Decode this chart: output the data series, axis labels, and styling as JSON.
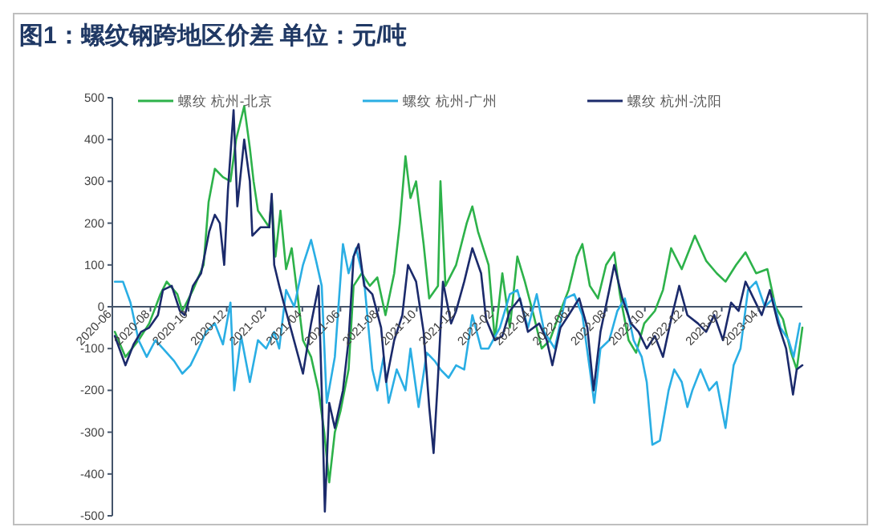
{
  "chart_data": {
    "type": "line",
    "title": "图1：螺纹钢跨地区价差   单位：元/吨",
    "xlim": [
      "2020-06-01",
      "2023-06-10"
    ],
    "ylim": [
      -500,
      500
    ],
    "yticks": [
      -500,
      -400,
      -300,
      -200,
      -100,
      0,
      100,
      200,
      300,
      400,
      500
    ],
    "xticks": [
      {
        "value": "2020-06",
        "label": "2020-06"
      },
      {
        "value": "2020-08",
        "label": "2020-08"
      },
      {
        "value": "2020-10",
        "label": "2020-10"
      },
      {
        "value": "2020-12",
        "label": "2020-12"
      },
      {
        "value": "2021-02",
        "label": "2021-02"
      },
      {
        "value": "2021-04",
        "label": "2021-04"
      },
      {
        "value": "2021-06",
        "label": "2021-06"
      },
      {
        "value": "2021-08",
        "label": "2021-08"
      },
      {
        "value": "2021-10",
        "label": "2021-10"
      },
      {
        "value": "2021-12",
        "label": "2021-12"
      },
      {
        "value": "2022-02",
        "label": "2022-02"
      },
      {
        "value": "2022-04",
        "label": "2022-04"
      },
      {
        "value": "2022-06",
        "label": "2022-06"
      },
      {
        "value": "2022-08",
        "label": "2022-08"
      },
      {
        "value": "2022-10",
        "label": "2022-10"
      },
      {
        "value": "2022-12",
        "label": "2022-12"
      },
      {
        "value": "2023-02",
        "label": "2023-02"
      },
      {
        "value": "2023-04",
        "label": "2023-04"
      }
    ],
    "grid": false,
    "legend": "top",
    "series": [
      {
        "name": "螺纹 杭州-北京",
        "color": "#2db24a",
        "x": [
          "2020-06-05",
          "2020-06-22",
          "2020-07-13",
          "2020-07-30",
          "2020-08-17",
          "2020-08-27",
          "2020-09-13",
          "2020-09-21",
          "2020-10-08",
          "2020-10-25",
          "2020-11-02",
          "2020-11-12",
          "2020-11-25",
          "2020-12-07",
          "2020-12-16",
          "2020-12-29",
          "2021-01-07",
          "2021-01-13",
          "2021-01-20",
          "2021-02-07",
          "2021-02-11",
          "2021-02-17",
          "2021-02-25",
          "2021-03-06",
          "2021-03-15",
          "2021-03-24",
          "2021-04-02",
          "2021-04-15",
          "2021-04-27",
          "2021-05-06",
          "2021-05-14",
          "2021-05-23",
          "2021-06-01",
          "2021-06-14",
          "2021-06-22",
          "2021-07-05",
          "2021-07-18",
          "2021-07-30",
          "2021-08-12",
          "2021-08-26",
          "2021-09-04",
          "2021-09-13",
          "2021-09-21",
          "2021-09-30",
          "2021-10-12",
          "2021-10-21",
          "2021-11-04",
          "2021-11-08",
          "2021-11-16",
          "2021-12-03",
          "2021-12-20",
          "2021-12-29",
          "2022-01-07",
          "2022-01-24",
          "2022-02-03",
          "2022-02-15",
          "2022-02-27",
          "2022-03-11",
          "2022-03-23",
          "2022-04-06",
          "2022-04-19",
          "2022-05-02",
          "2022-05-19",
          "2022-06-01",
          "2022-06-14",
          "2022-06-23",
          "2022-07-05",
          "2022-07-18",
          "2022-07-31",
          "2022-08-13",
          "2022-08-22",
          "2022-09-05",
          "2022-09-17",
          "2022-09-30",
          "2022-10-17",
          "2022-10-30",
          "2022-11-12",
          "2022-11-29",
          "2022-12-20",
          "2023-01-07",
          "2023-01-24",
          "2023-02-07",
          "2023-02-24",
          "2023-03-11",
          "2023-03-28",
          "2023-04-15",
          "2023-04-28",
          "2023-05-10",
          "2023-05-23",
          "2023-06-01",
          "2023-06-10"
        ],
        "values": [
          -60,
          -120,
          -80,
          -40,
          30,
          60,
          30,
          -10,
          40,
          100,
          250,
          330,
          310,
          300,
          400,
          480,
          380,
          300,
          230,
          190,
          260,
          120,
          230,
          90,
          140,
          30,
          -80,
          -120,
          -200,
          -300,
          -420,
          -300,
          -250,
          -150,
          50,
          80,
          50,
          70,
          -20,
          80,
          200,
          360,
          260,
          300,
          150,
          20,
          50,
          300,
          50,
          100,
          200,
          240,
          180,
          100,
          -80,
          80,
          -50,
          120,
          60,
          -20,
          -100,
          -80,
          -10,
          40,
          120,
          150,
          50,
          20,
          100,
          130,
          30,
          -80,
          -110,
          -40,
          -10,
          40,
          140,
          90,
          170,
          110,
          80,
          60,
          100,
          130,
          80,
          90,
          0,
          -30,
          -110,
          -150,
          -50
        ]
      },
      {
        "name": "螺纹 杭州-广州",
        "color": "#2aaee4",
        "x": [
          "2020-06-05",
          "2020-06-18",
          "2020-06-30",
          "2020-07-13",
          "2020-07-26",
          "2020-08-09",
          "2020-08-21",
          "2020-09-08",
          "2020-09-21",
          "2020-10-04",
          "2020-10-17",
          "2020-10-29",
          "2020-11-12",
          "2020-11-25",
          "2020-12-07",
          "2020-12-13",
          "2020-12-24",
          "2021-01-07",
          "2021-01-20",
          "2021-02-02",
          "2021-02-15",
          "2021-02-23",
          "2021-03-06",
          "2021-03-19",
          "2021-04-02",
          "2021-04-15",
          "2021-04-23",
          "2021-05-02",
          "2021-05-10",
          "2021-05-23",
          "2021-06-05",
          "2021-06-14",
          "2021-06-26",
          "2021-07-09",
          "2021-07-22",
          "2021-07-30",
          "2021-08-09",
          "2021-08-17",
          "2021-08-30",
          "2021-09-13",
          "2021-09-21",
          "2021-10-04",
          "2021-10-17",
          "2021-10-30",
          "2021-11-08",
          "2021-11-21",
          "2021-12-03",
          "2021-12-16",
          "2021-12-29",
          "2022-01-12",
          "2022-01-24",
          "2022-02-11",
          "2022-02-27",
          "2022-03-11",
          "2022-03-28",
          "2022-04-11",
          "2022-04-23",
          "2022-05-10",
          "2022-05-27",
          "2022-06-10",
          "2022-06-23",
          "2022-07-05",
          "2022-07-12",
          "2022-07-22",
          "2022-08-05",
          "2022-08-18",
          "2022-08-30",
          "2022-09-13",
          "2022-09-26",
          "2022-10-04",
          "2022-10-13",
          "2022-10-25",
          "2022-11-08",
          "2022-11-17",
          "2022-11-29",
          "2022-12-08",
          "2022-12-16",
          "2022-12-29",
          "2023-01-12",
          "2023-01-24",
          "2023-02-07",
          "2023-02-20",
          "2023-03-03",
          "2023-03-15",
          "2023-03-28",
          "2023-04-11",
          "2023-04-24",
          "2023-05-06",
          "2023-05-19",
          "2023-05-27",
          "2023-06-06"
        ],
        "values": [
          60,
          60,
          10,
          -80,
          -120,
          -80,
          -100,
          -130,
          -160,
          -140,
          -100,
          -60,
          -40,
          -90,
          10,
          -200,
          -70,
          -180,
          -80,
          -100,
          -60,
          -100,
          40,
          0,
          100,
          160,
          110,
          50,
          -230,
          -120,
          150,
          80,
          140,
          60,
          -150,
          -200,
          -120,
          -230,
          -150,
          -200,
          -100,
          -240,
          -110,
          -130,
          -150,
          -170,
          -140,
          -150,
          -20,
          -100,
          -100,
          -50,
          30,
          40,
          -50,
          30,
          -60,
          -100,
          20,
          30,
          -20,
          -150,
          -230,
          -100,
          -80,
          -10,
          20,
          -80,
          -120,
          -180,
          -330,
          -320,
          -200,
          -150,
          -180,
          -240,
          -200,
          -150,
          -200,
          -180,
          -290,
          -140,
          -100,
          40,
          60,
          0,
          20,
          -50,
          -80,
          -120,
          -40
        ]
      },
      {
        "name": "螺纹 杭州-沈阳",
        "color": "#1b2a6b",
        "x": [
          "2020-06-05",
          "2020-06-22",
          "2020-07-05",
          "2020-07-17",
          "2020-07-30",
          "2020-08-13",
          "2020-08-21",
          "2020-09-04",
          "2020-09-17",
          "2020-09-25",
          "2020-10-08",
          "2020-10-21",
          "2020-11-03",
          "2020-11-12",
          "2020-11-20",
          "2020-11-27",
          "2020-12-03",
          "2020-12-12",
          "2020-12-18",
          "2020-12-29",
          "2021-01-07",
          "2021-01-11",
          "2021-01-24",
          "2021-02-07",
          "2021-02-11",
          "2021-02-15",
          "2021-02-23",
          "2021-03-02",
          "2021-03-15",
          "2021-04-02",
          "2021-04-15",
          "2021-04-27",
          "2021-05-03",
          "2021-05-07",
          "2021-05-14",
          "2021-05-23",
          "2021-06-05",
          "2021-06-14",
          "2021-06-22",
          "2021-06-30",
          "2021-07-09",
          "2021-07-22",
          "2021-08-05",
          "2021-08-13",
          "2021-08-26",
          "2021-09-08",
          "2021-09-17",
          "2021-09-30",
          "2021-10-12",
          "2021-10-21",
          "2021-10-28",
          "2021-11-04",
          "2021-11-12",
          "2021-11-25",
          "2021-12-03",
          "2021-12-16",
          "2021-12-29",
          "2022-01-12",
          "2022-01-20",
          "2022-02-03",
          "2022-02-15",
          "2022-02-27",
          "2022-03-15",
          "2022-03-28",
          "2022-04-15",
          "2022-04-27",
          "2022-05-06",
          "2022-05-19",
          "2022-06-01",
          "2022-06-18",
          "2022-07-01",
          "2022-07-11",
          "2022-07-22",
          "2022-08-05",
          "2022-08-13",
          "2022-08-26",
          "2022-09-09",
          "2022-09-21",
          "2022-10-04",
          "2022-10-17",
          "2022-10-30",
          "2022-11-12",
          "2022-11-25",
          "2022-12-08",
          "2022-12-25",
          "2023-01-07",
          "2023-01-20",
          "2023-02-03",
          "2023-02-16",
          "2023-02-28",
          "2023-03-11",
          "2023-03-24",
          "2023-04-06",
          "2023-04-19",
          "2023-05-02",
          "2023-05-15",
          "2023-05-26",
          "2023-06-01",
          "2023-06-10"
        ],
        "values": [
          -70,
          -140,
          -90,
          -60,
          -50,
          -20,
          40,
          50,
          -10,
          -20,
          50,
          80,
          180,
          220,
          200,
          100,
          280,
          470,
          240,
          400,
          300,
          170,
          190,
          190,
          270,
          100,
          50,
          10,
          -60,
          -160,
          -40,
          50,
          -250,
          -490,
          -230,
          -290,
          -200,
          -80,
          120,
          150,
          50,
          30,
          -50,
          -180,
          -80,
          -20,
          100,
          60,
          -60,
          -240,
          -350,
          -170,
          60,
          -40,
          -10,
          60,
          140,
          80,
          -30,
          -80,
          -70,
          -10,
          20,
          -60,
          -40,
          -80,
          -140,
          -50,
          -20,
          20,
          -50,
          -200,
          -60,
          40,
          100,
          20,
          -40,
          -60,
          -100,
          -70,
          -120,
          -30,
          50,
          -20,
          -40,
          -60,
          -20,
          -80,
          10,
          -10,
          60,
          20,
          -20,
          40,
          -40,
          -100,
          -210,
          -150,
          -140
        ]
      }
    ]
  }
}
